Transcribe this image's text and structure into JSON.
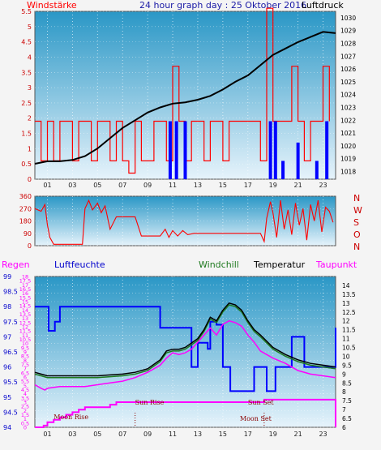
{
  "header": {
    "left_label": "Windstärke",
    "title": "24 hour graph day : 25 Oktober 2016",
    "right_label": "Luftdruck"
  },
  "colors": {
    "background": "#f4f4f4",
    "plot_top": "#2a97c6",
    "plot_bottom": "#e6f3fb",
    "wind": "#ff0000",
    "gust": "#0000ff",
    "pressure": "#000000",
    "temperature": "#000000",
    "windchill": "#1f7a1f",
    "dewpoint": "#ff00ff",
    "humidity": "#0000ff",
    "rain": "#ff00ff"
  },
  "chart_data": [
    {
      "id": "wind_pressure",
      "type": "line",
      "series": [
        {
          "name": "Windstärke",
          "axis": "left",
          "x": [
            0,
            0.5,
            1,
            1.5,
            2,
            2.5,
            3,
            3.5,
            4,
            4.5,
            5,
            5.5,
            6,
            6.5,
            7,
            7.5,
            8,
            8.5,
            9,
            9.5,
            10,
            10.5,
            11,
            11.5,
            12,
            12.5,
            13,
            13.5,
            14,
            14.5,
            15,
            15.5,
            16,
            16.5,
            17,
            17.5,
            18,
            18.5,
            19,
            19.5,
            20,
            20.5,
            21,
            21.5,
            22,
            22.5,
            23,
            23.5
          ],
          "values": [
            1.9,
            0.6,
            1.9,
            0.6,
            1.9,
            1.9,
            0.6,
            1.9,
            1.9,
            0.6,
            1.9,
            1.9,
            0.6,
            1.9,
            0.6,
            0.2,
            1.9,
            0.6,
            0.6,
            1.9,
            1.9,
            0.6,
            3.7,
            1.9,
            0.6,
            1.9,
            1.9,
            0.6,
            1.9,
            1.9,
            0.6,
            1.9,
            1.9,
            1.9,
            1.9,
            1.9,
            0.6,
            5.6,
            1.9,
            1.9,
            1.9,
            3.7,
            1.9,
            0.6,
            1.9,
            1.9,
            3.7,
            1.9
          ]
        },
        {
          "name": "",
          "axis": "left",
          "x": [
            10.8,
            11.3,
            12,
            18.8,
            19.2,
            19.8,
            21,
            22.5,
            23.3
          ],
          "values": [
            1.9,
            1.9,
            1.9,
            1.9,
            1.9,
            0.6,
            1.2,
            0.6,
            1.9
          ]
        },
        {
          "name": "Luftdruck",
          "axis": "right",
          "x": [
            0,
            1,
            2,
            3,
            4,
            5,
            6,
            7,
            8,
            9,
            10,
            11,
            12,
            13,
            14,
            15,
            16,
            17,
            18,
            19,
            20,
            21,
            22,
            23,
            24
          ],
          "values": [
            1018.6,
            1018.8,
            1018.8,
            1018.9,
            1019.2,
            1019.8,
            1020.6,
            1021.4,
            1022.0,
            1022.6,
            1023.0,
            1023.3,
            1023.4,
            1023.6,
            1023.9,
            1024.4,
            1025.0,
            1025.5,
            1026.3,
            1027.1,
            1027.6,
            1028.1,
            1028.5,
            1028.9,
            1028.8
          ]
        }
      ],
      "xlabel": "",
      "x_ticks": [
        "01",
        "03",
        "05",
        "07",
        "09",
        "11",
        "13",
        "15",
        "17",
        "19",
        "21",
        "23"
      ],
      "ylim_left": [
        0,
        5.5
      ],
      "yticks_left": [
        "0",
        "0.5",
        "1",
        "1.5",
        "2",
        "2.5",
        "3",
        "3.5",
        "4",
        "4.5",
        "5",
        "5.5"
      ],
      "ylim_right": [
        1017.4,
        1030.5
      ],
      "yticks_right": [
        "1018",
        "1019",
        "1020",
        "1021",
        "1022",
        "1023",
        "1024",
        "1025",
        "1026",
        "1027",
        "1028",
        "1029",
        "1030"
      ],
      "grid": true
    },
    {
      "id": "wind_direction",
      "type": "line",
      "series": [
        {
          "name": "",
          "x": [
            0,
            0.5,
            0.8,
            1,
            1.2,
            1.5,
            2,
            3,
            3.8,
            4,
            4.3,
            4.6,
            5,
            5.3,
            5.6,
            6,
            6.5,
            7,
            8,
            8.5,
            9,
            10,
            10.4,
            10.7,
            11,
            11.4,
            11.8,
            12.2,
            12.7,
            13,
            14,
            15,
            16,
            17,
            18,
            18.3,
            18.5,
            18.8,
            19,
            19.3,
            19.6,
            19.9,
            20.2,
            20.5,
            20.8,
            21.1,
            21.4,
            21.7,
            22,
            22.3,
            22.6,
            22.9,
            23.2,
            23.5,
            23.8
          ],
          "values": [
            270,
            250,
            300,
            150,
            60,
            10,
            10,
            10,
            10,
            270,
            330,
            260,
            310,
            240,
            290,
            120,
            210,
            210,
            210,
            70,
            70,
            70,
            120,
            60,
            110,
            70,
            110,
            80,
            90,
            90,
            90,
            90,
            90,
            90,
            90,
            30,
            200,
            320,
            240,
            60,
            330,
            120,
            260,
            80,
            310,
            150,
            270,
            40,
            300,
            180,
            330,
            100,
            280,
            250,
            170
          ]
        }
      ],
      "xlabel": "",
      "ylim": [
        0,
        360
      ],
      "yticks": [
        "0",
        "90",
        "180",
        "270",
        "360"
      ],
      "right_labels": [
        "N",
        "W",
        "S",
        "O",
        "N"
      ]
    },
    {
      "id": "temperature_humidity",
      "type": "line",
      "legend": [
        "Regen",
        "Luftfeuchte",
        "Windchill",
        "Temperatur",
        "Taupunkt"
      ],
      "series": [
        {
          "name": "Temperatur",
          "axis": "temp",
          "x": [
            0,
            0.5,
            1,
            2,
            3,
            4,
            5,
            6,
            7,
            8,
            9,
            10,
            10.5,
            11,
            11.5,
            12,
            13,
            13.5,
            14,
            14.5,
            15,
            15.5,
            16,
            16.5,
            17,
            17.5,
            18,
            19,
            20,
            21,
            22,
            23,
            24
          ],
          "values": [
            9.1,
            9.0,
            8.9,
            8.9,
            8.9,
            8.9,
            8.9,
            8.95,
            9.0,
            9.1,
            9.3,
            9.8,
            10.3,
            10.4,
            10.4,
            10.5,
            11.0,
            11.5,
            12.2,
            12.0,
            12.6,
            13.0,
            12.9,
            12.6,
            12.0,
            11.5,
            11.2,
            10.5,
            10.1,
            9.8,
            9.6,
            9.5,
            9.4
          ]
        },
        {
          "name": "Windchill",
          "axis": "temp",
          "x": [
            0,
            0.5,
            1,
            2,
            3,
            4,
            5,
            6,
            7,
            8,
            9,
            10,
            10.5,
            11,
            11.5,
            12,
            13,
            13.5,
            14,
            14.5,
            15,
            15.5,
            16,
            16.5,
            17,
            17.5,
            18,
            19,
            20,
            21,
            22,
            23,
            24
          ],
          "values": [
            9.0,
            8.9,
            8.8,
            8.8,
            8.8,
            8.8,
            8.8,
            8.85,
            8.9,
            9.0,
            9.2,
            9.7,
            10.2,
            10.3,
            10.3,
            10.4,
            10.9,
            11.4,
            12.1,
            11.9,
            12.5,
            12.9,
            12.8,
            12.5,
            11.9,
            11.4,
            11.1,
            10.4,
            10.0,
            9.7,
            9.5,
            9.4,
            9.3
          ]
        },
        {
          "name": "Taupunkt",
          "axis": "temp",
          "x": [
            0,
            0.5,
            0.8,
            1,
            2,
            3,
            4,
            5,
            6,
            7,
            8,
            9,
            9.5,
            10,
            10.5,
            11,
            11.5,
            12,
            12.5,
            13,
            13.5,
            14,
            14.5,
            15,
            15.5,
            16,
            16.5,
            17,
            17.5,
            18,
            19,
            20,
            21,
            22,
            23,
            24
          ],
          "values": [
            8.4,
            8.2,
            8.1,
            8.2,
            8.3,
            8.3,
            8.3,
            8.4,
            8.5,
            8.6,
            8.8,
            9.1,
            9.3,
            9.5,
            9.9,
            10.2,
            10.1,
            10.2,
            10.4,
            10.8,
            11.2,
            11.6,
            11.2,
            11.8,
            12.0,
            11.9,
            11.7,
            11.2,
            10.8,
            10.3,
            9.9,
            9.6,
            9.2,
            9.0,
            8.9,
            8.8
          ]
        },
        {
          "name": "Luftfeuchte",
          "axis": "hum",
          "x": [
            0,
            1,
            1.1,
            1.6,
            2,
            3,
            4,
            5,
            6,
            7,
            8,
            9,
            10,
            10.5,
            11,
            11.5,
            12,
            12.5,
            13,
            13.5,
            13.8,
            14,
            14.5,
            15,
            15.2,
            15.6,
            16,
            17,
            17.5,
            18,
            18.5,
            19,
            19.2,
            20,
            20.5,
            21,
            21.5,
            22,
            23,
            23.8,
            24
          ],
          "values": [
            98,
            98,
            97.2,
            97.5,
            98,
            98,
            98,
            98,
            98,
            98,
            98,
            98,
            97.3,
            97.3,
            97.3,
            97.3,
            97.3,
            96,
            96.8,
            96.8,
            96.6,
            97.5,
            97.4,
            96,
            96,
            95.2,
            95.2,
            95.2,
            96,
            96,
            95.2,
            95.2,
            96,
            96,
            97,
            97,
            96,
            96,
            96,
            96,
            97.3
          ]
        },
        {
          "name": "Regen",
          "axis": "rain",
          "x": [
            0,
            0.7,
            1,
            1.5,
            2,
            2.5,
            3,
            3.5,
            4,
            4.5,
            5,
            5.5,
            6,
            6.5,
            7,
            7.5,
            8,
            10,
            12,
            14,
            16,
            18,
            18.3,
            20,
            22,
            23.8,
            24
          ],
          "values": [
            0,
            0.2,
            0.6,
            0.9,
            1.2,
            1.5,
            1.8,
            2.1,
            2.4,
            2.4,
            2.4,
            2.4,
            2.7,
            3,
            3,
            3,
            3,
            3,
            3,
            3,
            3,
            3,
            3.3,
            3.3,
            3.3,
            3.3,
            0
          ]
        }
      ],
      "ylim_rain": [
        0,
        18
      ],
      "yticks_rain": [
        "0",
        "0.5",
        "1",
        "1.5",
        "2",
        "2.5",
        "3",
        "3.5",
        "4",
        "4.5",
        "5",
        "5.5",
        "6",
        "6.5",
        "7",
        "7.5",
        "8",
        "8.5",
        "9",
        "9.5",
        "10",
        "10.5",
        "11",
        "11.5",
        "12",
        "12.5",
        "13",
        "13.5",
        "14",
        "14.5",
        "15",
        "15.5",
        "16",
        "16.5",
        "17",
        "17.5",
        "18"
      ],
      "ylim_hum": [
        94,
        99
      ],
      "yticks_hum": [
        "94",
        "94.5",
        "95",
        "95.5",
        "96",
        "96.5",
        "97",
        "97.5",
        "98",
        "98.5",
        "99"
      ],
      "ylim_temp": [
        6,
        14.5
      ],
      "yticks_temp": [
        "6",
        "6.5",
        "7",
        "7.5",
        "8",
        "8.5",
        "9",
        "9.5",
        "10",
        "10.5",
        "11",
        "11.5",
        "12",
        "12.5",
        "13",
        "13.5",
        "14"
      ],
      "annotations": [
        {
          "text": "Moon Rise",
          "x": 1.5
        },
        {
          "text": "Sun Rise",
          "x": 8.0
        },
        {
          "text": "Moon Set",
          "x": 18.3
        },
        {
          "text": "Sun Set",
          "x": 18.3
        }
      ]
    }
  ]
}
